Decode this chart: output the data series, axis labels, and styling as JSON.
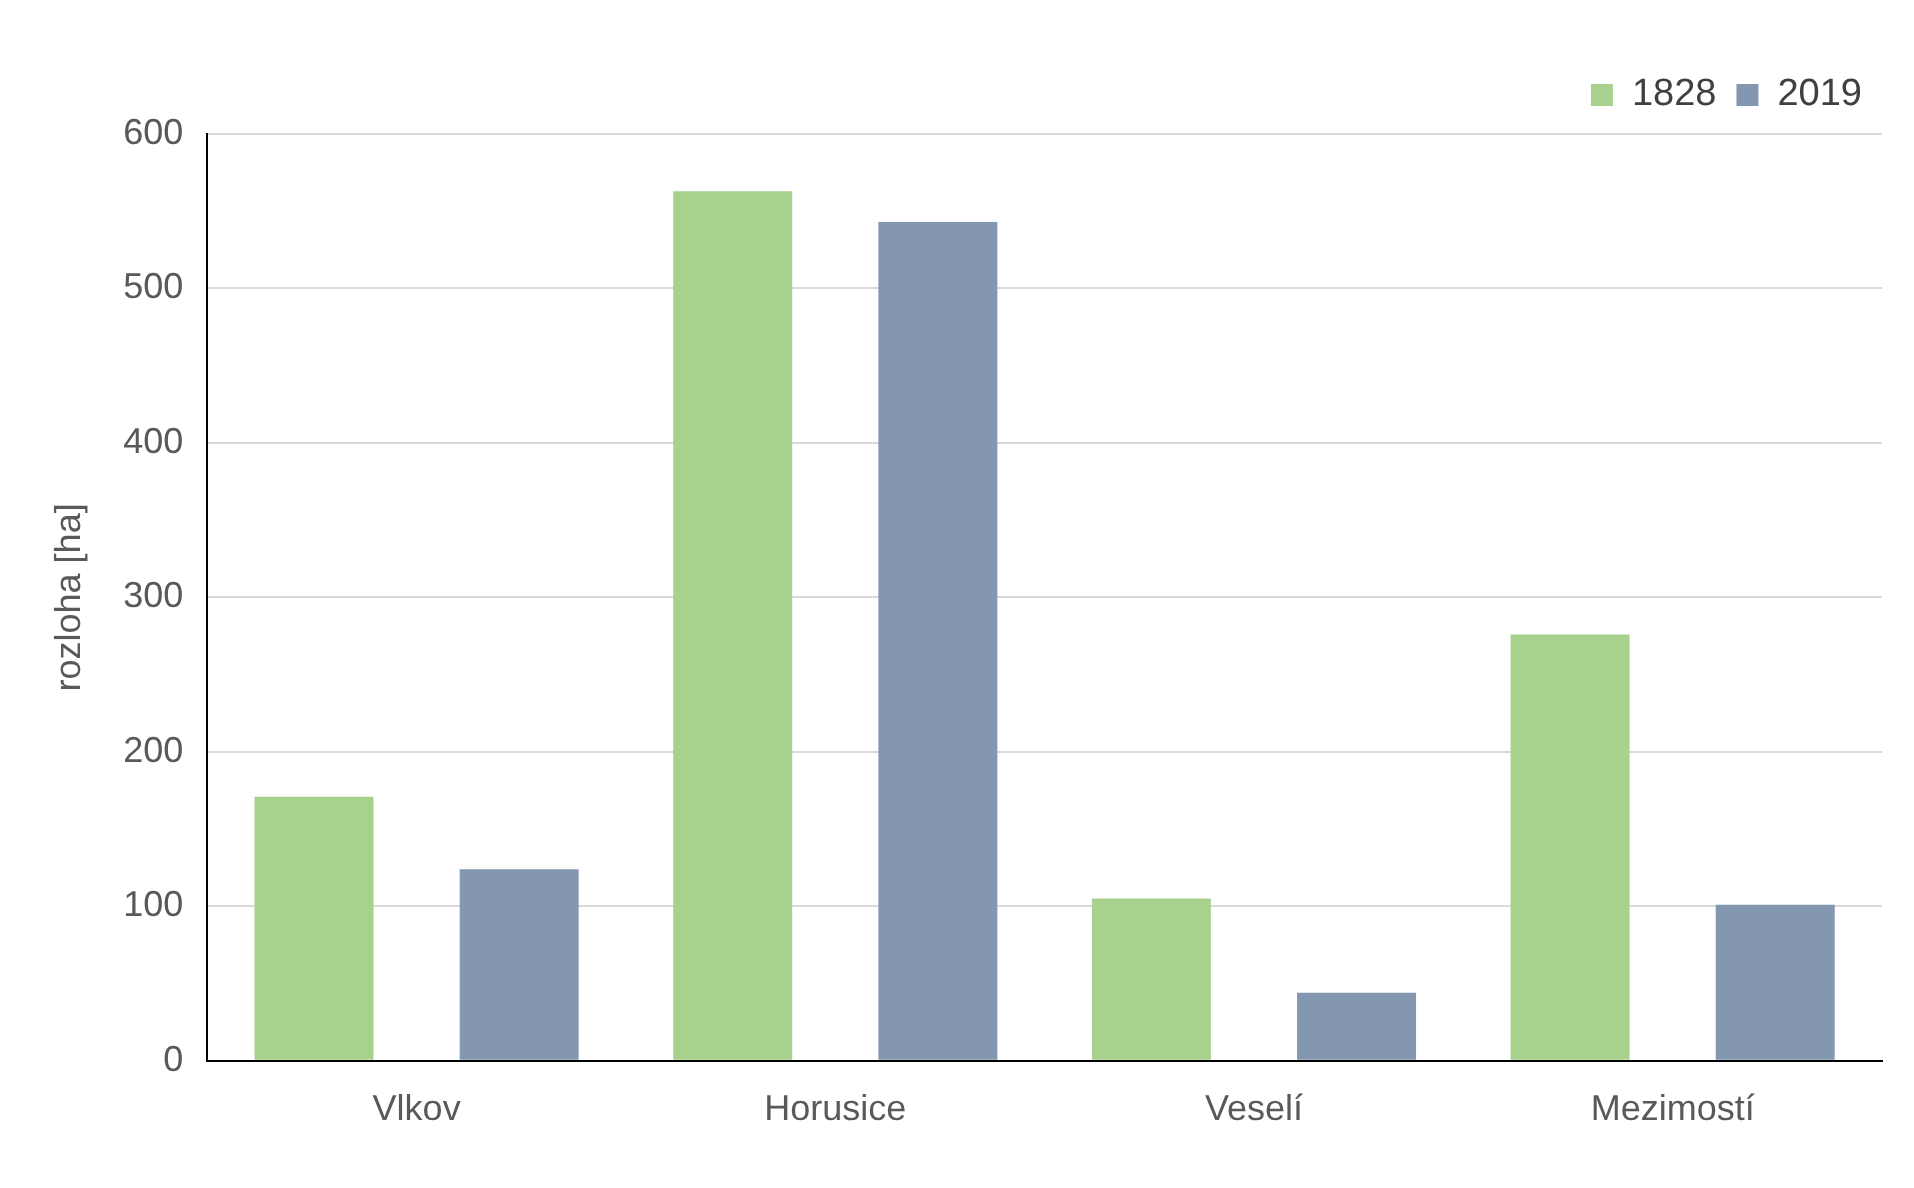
{
  "chart_data": {
    "type": "bar",
    "ylabel": "rozloha [ha]",
    "categories": [
      "Vlkov",
      "Horusice",
      "Veselí",
      "Mezimostí"
    ],
    "series": [
      {
        "name": "1828",
        "color": "#a9d18e",
        "values": [
          171,
          563,
          105,
          276
        ]
      },
      {
        "name": "2019",
        "color": "#8497b0",
        "values": [
          124,
          543,
          44,
          101
        ]
      }
    ],
    "ylim": [
      0,
      600
    ],
    "yticks": [
      0,
      100,
      200,
      300,
      400,
      500,
      600
    ],
    "grid": "y",
    "legend": "top right"
  }
}
